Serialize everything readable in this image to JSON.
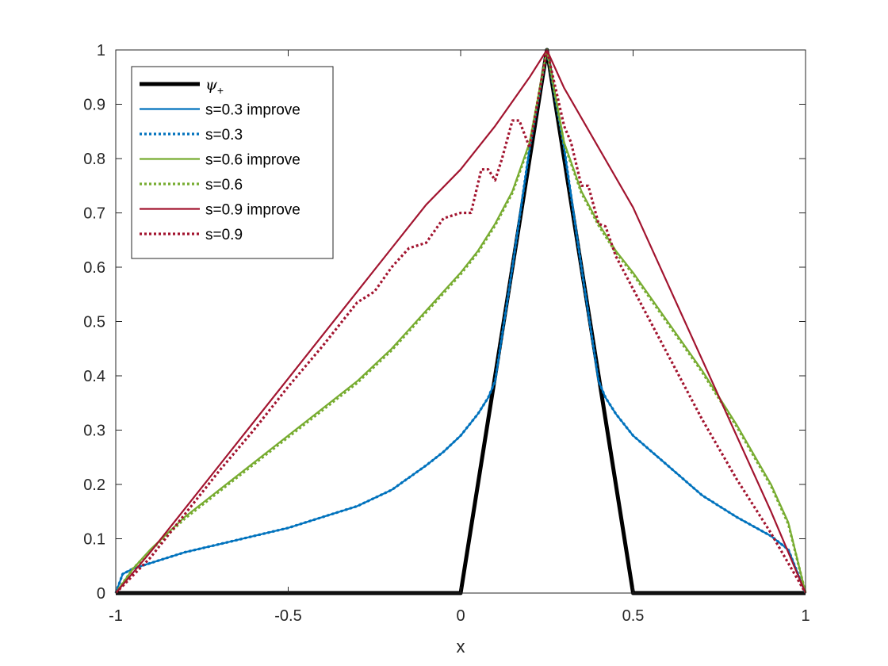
{
  "chart_data": {
    "type": "line",
    "title": "",
    "xlabel": "x",
    "ylabel": "",
    "xlim": [
      -1,
      1
    ],
    "ylim": [
      0,
      1
    ],
    "xticks": [
      "-1",
      "-0.5",
      "0",
      "0.5",
      "1"
    ],
    "yticks": [
      "0",
      "0.1",
      "0.2",
      "0.3",
      "0.4",
      "0.5",
      "0.6",
      "0.7",
      "0.8",
      "0.9",
      "1"
    ],
    "grid": false,
    "legend_position": "top-left",
    "series": [
      {
        "name": "ψ+",
        "name_main": "ψ",
        "name_sub": "+",
        "color": "#000000",
        "style": "solid",
        "width": "thick",
        "x": [
          -1,
          0,
          0.25,
          0.5,
          1
        ],
        "y": [
          0,
          0,
          1,
          0,
          0
        ]
      },
      {
        "name": "s=0.3 improve",
        "color": "#0072BD",
        "style": "solid",
        "x": [
          -1,
          -0.98,
          -0.95,
          -0.9,
          -0.8,
          -0.7,
          -0.6,
          -0.5,
          -0.4,
          -0.3,
          -0.2,
          -0.1,
          -0.05,
          0,
          0.05,
          0.08,
          0.1,
          0.15,
          0.2,
          0.25,
          0.3,
          0.35,
          0.4,
          0.42,
          0.45,
          0.5,
          0.6,
          0.7,
          0.8,
          0.9,
          0.95,
          1
        ],
        "y": [
          0,
          0.035,
          0.045,
          0.055,
          0.075,
          0.09,
          0.105,
          0.12,
          0.14,
          0.16,
          0.19,
          0.235,
          0.26,
          0.29,
          0.33,
          0.36,
          0.39,
          0.6,
          0.82,
          1,
          0.82,
          0.6,
          0.39,
          0.36,
          0.33,
          0.29,
          0.235,
          0.18,
          0.14,
          0.105,
          0.08,
          0
        ]
      },
      {
        "name": "s=0.3",
        "color": "#0072BD",
        "style": "dotted",
        "x": [
          -1,
          -0.98,
          -0.95,
          -0.9,
          -0.8,
          -0.7,
          -0.6,
          -0.5,
          -0.4,
          -0.3,
          -0.2,
          -0.1,
          -0.05,
          0,
          0.05,
          0.08,
          0.1,
          0.15,
          0.2,
          0.25,
          0.3,
          0.35,
          0.4,
          0.42,
          0.45,
          0.5,
          0.6,
          0.7,
          0.8,
          0.9,
          0.95,
          1
        ],
        "y": [
          0,
          0.035,
          0.045,
          0.055,
          0.075,
          0.09,
          0.105,
          0.12,
          0.14,
          0.16,
          0.19,
          0.235,
          0.26,
          0.29,
          0.33,
          0.36,
          0.39,
          0.6,
          0.82,
          1,
          0.82,
          0.6,
          0.39,
          0.36,
          0.33,
          0.29,
          0.235,
          0.18,
          0.14,
          0.105,
          0.08,
          0
        ]
      },
      {
        "name": "s=0.6 improve",
        "color": "#77AC30",
        "style": "solid",
        "x": [
          -1,
          -0.95,
          -0.9,
          -0.8,
          -0.7,
          -0.6,
          -0.5,
          -0.4,
          -0.3,
          -0.2,
          -0.1,
          0,
          0.05,
          0.1,
          0.15,
          0.2,
          0.25,
          0.3,
          0.35,
          0.4,
          0.45,
          0.5,
          0.6,
          0.7,
          0.8,
          0.9,
          0.95,
          1
        ],
        "y": [
          0,
          0.045,
          0.08,
          0.14,
          0.19,
          0.24,
          0.29,
          0.34,
          0.39,
          0.45,
          0.52,
          0.59,
          0.63,
          0.68,
          0.74,
          0.83,
          1,
          0.83,
          0.74,
          0.68,
          0.63,
          0.59,
          0.5,
          0.41,
          0.31,
          0.2,
          0.13,
          0
        ]
      },
      {
        "name": "s=0.6",
        "color": "#77AC30",
        "style": "dotted",
        "x": [
          -1,
          -0.95,
          -0.9,
          -0.8,
          -0.7,
          -0.6,
          -0.5,
          -0.4,
          -0.3,
          -0.2,
          -0.1,
          0,
          0.05,
          0.1,
          0.15,
          0.2,
          0.25,
          0.3,
          0.35,
          0.4,
          0.45,
          0.5,
          0.6,
          0.7,
          0.8,
          0.9,
          0.95,
          1
        ],
        "y": [
          0,
          0.045,
          0.078,
          0.137,
          0.187,
          0.237,
          0.287,
          0.337,
          0.387,
          0.447,
          0.517,
          0.587,
          0.627,
          0.677,
          0.737,
          0.827,
          1,
          0.827,
          0.737,
          0.677,
          0.627,
          0.587,
          0.497,
          0.407,
          0.307,
          0.197,
          0.127,
          0
        ]
      },
      {
        "name": "s=0.9 improve",
        "color": "#A2142F",
        "style": "solid",
        "x": [
          -1,
          -0.9,
          -0.8,
          -0.7,
          -0.6,
          -0.5,
          -0.4,
          -0.3,
          -0.2,
          -0.1,
          0,
          0.1,
          0.2,
          0.25,
          0.3,
          0.4,
          0.5,
          0.6,
          0.7,
          0.8,
          0.9,
          1
        ],
        "y": [
          0,
          0.075,
          0.155,
          0.235,
          0.315,
          0.395,
          0.475,
          0.555,
          0.635,
          0.715,
          0.78,
          0.86,
          0.95,
          1,
          0.93,
          0.82,
          0.71,
          0.57,
          0.43,
          0.29,
          0.15,
          0
        ]
      },
      {
        "name": "s=0.9",
        "color": "#A2142F",
        "style": "dotted",
        "x": [
          -1,
          -0.9,
          -0.8,
          -0.7,
          -0.6,
          -0.5,
          -0.4,
          -0.3,
          -0.25,
          -0.2,
          -0.15,
          -0.1,
          -0.05,
          0,
          0.03,
          0.06,
          0.08,
          0.1,
          0.12,
          0.15,
          0.17,
          0.2,
          0.25,
          0.3,
          0.32,
          0.35,
          0.37,
          0.4,
          0.42,
          0.45,
          0.5,
          0.6,
          0.7,
          0.8,
          0.9,
          1
        ],
        "y": [
          0,
          0.065,
          0.145,
          0.225,
          0.3,
          0.38,
          0.455,
          0.535,
          0.555,
          0.6,
          0.635,
          0.645,
          0.69,
          0.7,
          0.7,
          0.78,
          0.78,
          0.76,
          0.8,
          0.87,
          0.87,
          0.82,
          1,
          0.86,
          0.83,
          0.75,
          0.75,
          0.68,
          0.675,
          0.62,
          0.56,
          0.44,
          0.32,
          0.21,
          0.11,
          0
        ]
      }
    ]
  }
}
